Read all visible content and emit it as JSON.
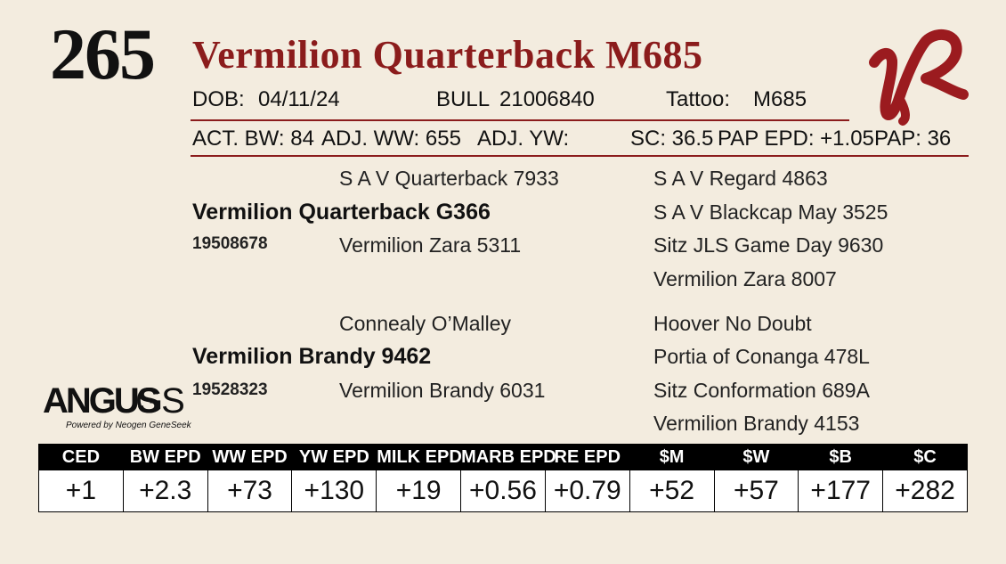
{
  "lot": "265",
  "name": "Vermilion Quarterback M685",
  "info": {
    "dob_label": "DOB:",
    "dob": "04/11/24",
    "sex": "BULL",
    "reg_no": "21006840",
    "tattoo_label": "Tattoo:",
    "tattoo": "M685",
    "act_bw": "ACT. BW: 84",
    "adj_ww": "ADJ. WW: 655",
    "adj_yw": "ADJ. YW:",
    "sc": "SC: 36.5",
    "pap_epd": "PAP EPD: +1.05",
    "pap": "PAP: 36"
  },
  "pedigree": {
    "sire": {
      "name": "Vermilion Quarterback G366",
      "reg": "19508678"
    },
    "sire_sire": "S A V Quarterback 7933",
    "sire_dam": "Vermilion Zara 5311",
    "sire_sire_sire": "S A V Regard 4863",
    "sire_sire_dam": "S A V Blackcap May 3525",
    "sire_dam_sire": "Sitz JLS Game Day 9630",
    "sire_dam_dam": "Vermilion Zara 8007",
    "dam": {
      "name": "Vermilion Brandy 9462",
      "reg": "19528323"
    },
    "dam_sire": "Connealy O’Malley",
    "dam_dam": "Vermilion Brandy 6031",
    "dam_sire_sire": "Hoover No Doubt",
    "dam_sire_dam": "Portia of Conanga 478L",
    "dam_dam_sire": "Sitz Conformation 689A",
    "dam_dam_dam": "Vermilion Brandy 4153"
  },
  "logo": {
    "brand": "ANGUS",
    "suffix": "GS",
    "tagline": "Powered by Neogen GeneSeek"
  },
  "epd": {
    "headers": [
      "CED",
      "BW EPD",
      "WW EPD",
      "YW EPD",
      "MILK EPD",
      "MARB EPD",
      "RE EPD",
      "$M",
      "$W",
      "$B",
      "$C"
    ],
    "values": [
      "+1",
      "+2.3",
      "+73",
      "+130",
      "+19",
      "+0.56",
      "+0.79",
      "+52",
      "+57",
      "+177",
      "+282"
    ]
  },
  "colors": {
    "accent": "#8b1c1c",
    "background": "#f3ecdf",
    "brand_mark": "#9b1b1f"
  },
  "icons": {
    "brand_mark": "ranch-brand-icon"
  }
}
